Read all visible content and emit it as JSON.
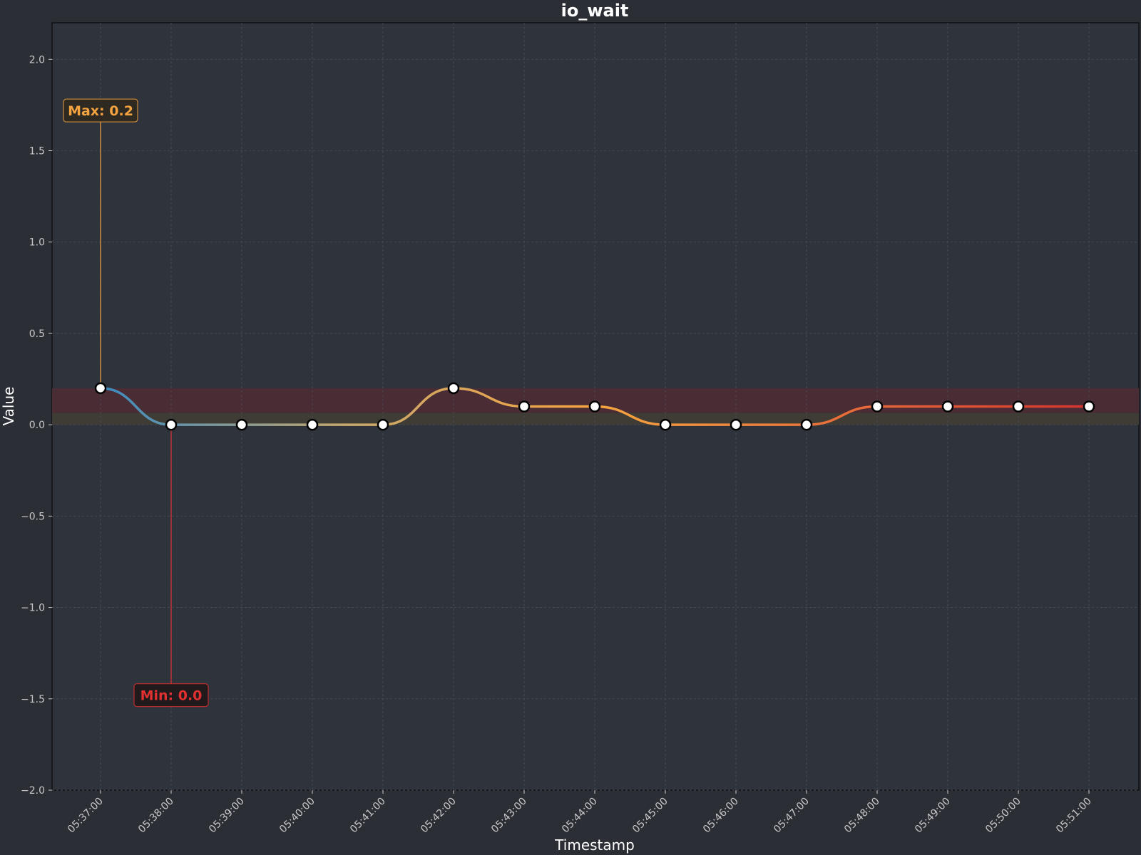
{
  "chart_data": {
    "type": "line",
    "title": "io_wait",
    "xlabel": "Timestamp",
    "ylabel": "Value",
    "ylim": [
      -2.0,
      2.2
    ],
    "yticks": [
      "2.0",
      "1.5",
      "1.0",
      "0.5",
      "0.0",
      "−0.5",
      "−1.0",
      "−1.5",
      "−2.0"
    ],
    "ytick_values": [
      2.0,
      1.5,
      1.0,
      0.5,
      0.0,
      -0.5,
      -1.0,
      -1.5,
      -2.0
    ],
    "x": [
      "05:37:00",
      "05:38:00",
      "05:39:00",
      "05:40:00",
      "05:41:00",
      "05:42:00",
      "05:43:00",
      "05:44:00",
      "05:45:00",
      "05:46:00",
      "05:47:00",
      "05:48:00",
      "05:49:00",
      "05:50:00",
      "05:51:00"
    ],
    "series": [
      {
        "values": [
          0.2,
          0.0,
          0.0,
          0.0,
          0.0,
          0.2,
          0.1,
          0.1,
          0.0,
          0.0,
          0.0,
          0.1,
          0.1,
          0.1,
          0.1
        ]
      }
    ],
    "bands": [
      {
        "from": 0.065,
        "to": 0.2,
        "color": "#4a2c35"
      },
      {
        "from": 0.0,
        "to": 0.065,
        "color": "#3f3b35"
      }
    ],
    "grid": true,
    "annotations": {
      "max": {
        "text": "Max: 0.2",
        "index": 0,
        "label_y": 1.72,
        "color": "#f4a340",
        "bg": "#2e2a22"
      },
      "min": {
        "text": "Min: 0.0",
        "index": 1,
        "label_y": -1.48,
        "color": "#e03030",
        "bg": "#201a1c"
      }
    },
    "colors": {
      "background": "#2b2e35",
      "plot_bg": "#2f333b",
      "gradient": [
        "#3b8bc2",
        "#c8a86e",
        "#f5a540",
        "#e86e3a",
        "#d7342f"
      ],
      "marker_fill": "#ffffff",
      "marker_edge": "#000000"
    }
  }
}
